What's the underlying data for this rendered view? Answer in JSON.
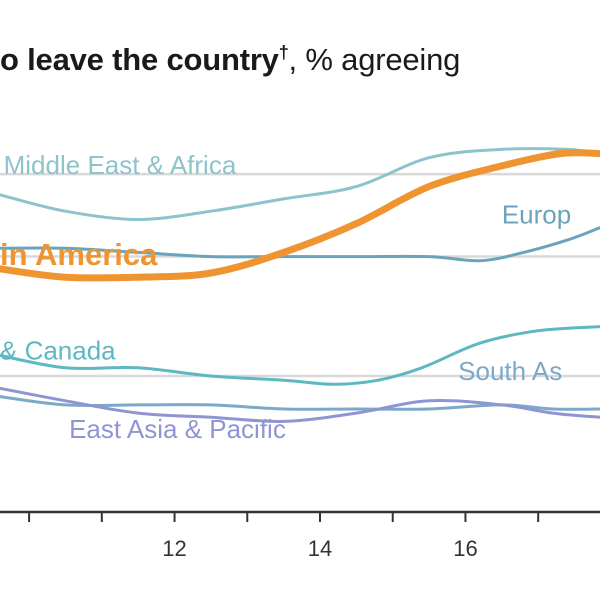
{
  "chart_data": {
    "type": "line",
    "title_bold": "o leave the country",
    "title_mark": "†",
    "title_rest": ", % agreeing",
    "x_ticks": [
      {
        "value": 10
      },
      {
        "value": 11
      },
      {
        "value": 12,
        "label": "12"
      },
      {
        "value": 13
      },
      {
        "value": 14,
        "label": "14"
      },
      {
        "value": 15
      },
      {
        "value": 16,
        "label": "16"
      },
      {
        "value": 17
      },
      {
        "value": 18
      }
    ],
    "xlim": [
      9.6,
      17.85
    ],
    "ylim": [
      0,
      100
    ],
    "gridlines": [
      82,
      62,
      33
    ],
    "series": [
      {
        "name": "Middle East & Africa",
        "color": "#8cc3cc",
        "width": 3,
        "points": [
          [
            9.6,
            77
          ],
          [
            10.5,
            73
          ],
          [
            11.5,
            71
          ],
          [
            12.5,
            73
          ],
          [
            13.5,
            76
          ],
          [
            14.5,
            79
          ],
          [
            15.5,
            86
          ],
          [
            16.5,
            88
          ],
          [
            17.4,
            88
          ],
          [
            17.85,
            87
          ]
        ]
      },
      {
        "name": "Europe",
        "color": "#6aa4bc",
        "width": 3,
        "points": [
          [
            9.6,
            64
          ],
          [
            10.5,
            64
          ],
          [
            11.5,
            63
          ],
          [
            12.5,
            62
          ],
          [
            13.5,
            62
          ],
          [
            14.5,
            62
          ],
          [
            15.5,
            62
          ],
          [
            16.2,
            61
          ],
          [
            16.8,
            63
          ],
          [
            17.4,
            66
          ],
          [
            17.85,
            69
          ]
        ]
      },
      {
        "name": "Latin America",
        "color": "#ee9532",
        "width": 7,
        "highlight": true,
        "points": [
          [
            9.6,
            59
          ],
          [
            10.5,
            57
          ],
          [
            11.5,
            57
          ],
          [
            12.5,
            58
          ],
          [
            13.5,
            63
          ],
          [
            14.5,
            70
          ],
          [
            15.5,
            79
          ],
          [
            16.5,
            84
          ],
          [
            17.3,
            87
          ],
          [
            17.85,
            87
          ]
        ]
      },
      {
        "name": "& Canada",
        "color": "#5eb8c2",
        "width": 3,
        "points": [
          [
            9.6,
            38
          ],
          [
            10.5,
            35
          ],
          [
            11.5,
            35
          ],
          [
            12.5,
            33
          ],
          [
            13.5,
            32
          ],
          [
            14.2,
            31
          ],
          [
            14.8,
            32
          ],
          [
            15.4,
            35
          ],
          [
            16.2,
            41
          ],
          [
            17,
            44
          ],
          [
            17.85,
            45
          ]
        ]
      },
      {
        "name": "South As",
        "color": "#7ca9c9",
        "width": 3,
        "points": [
          [
            9.6,
            28
          ],
          [
            10.5,
            26
          ],
          [
            11.5,
            26
          ],
          [
            12.5,
            26
          ],
          [
            13.5,
            25
          ],
          [
            14.5,
            25
          ],
          [
            15.5,
            25
          ],
          [
            16.5,
            26
          ],
          [
            17.2,
            25
          ],
          [
            17.85,
            25
          ]
        ]
      },
      {
        "name": "East Asia & Pacific",
        "color": "#8f95d2",
        "width": 3,
        "points": [
          [
            9.6,
            30
          ],
          [
            10.5,
            27
          ],
          [
            11.5,
            24
          ],
          [
            12.5,
            23
          ],
          [
            13.5,
            22
          ],
          [
            14.5,
            24
          ],
          [
            15.5,
            27
          ],
          [
            16.5,
            26
          ],
          [
            17.2,
            24
          ],
          [
            17.85,
            23
          ]
        ]
      }
    ],
    "labels": [
      {
        "series": 0,
        "text": "Middle East & Africa",
        "x": 9.65,
        "y": 82
      },
      {
        "series": 1,
        "text": "Europ",
        "x": 16.5,
        "y": 70
      },
      {
        "series": 2,
        "text": "in America",
        "x": 9.6,
        "y": 60
      },
      {
        "series": 3,
        "text": "& Canada",
        "x": 9.6,
        "y": 37
      },
      {
        "series": 4,
        "text": "South As",
        "x": 15.9,
        "y": 32
      },
      {
        "series": 5,
        "text": "East Asia & Pacific",
        "x": 10.55,
        "y": 18
      }
    ]
  }
}
